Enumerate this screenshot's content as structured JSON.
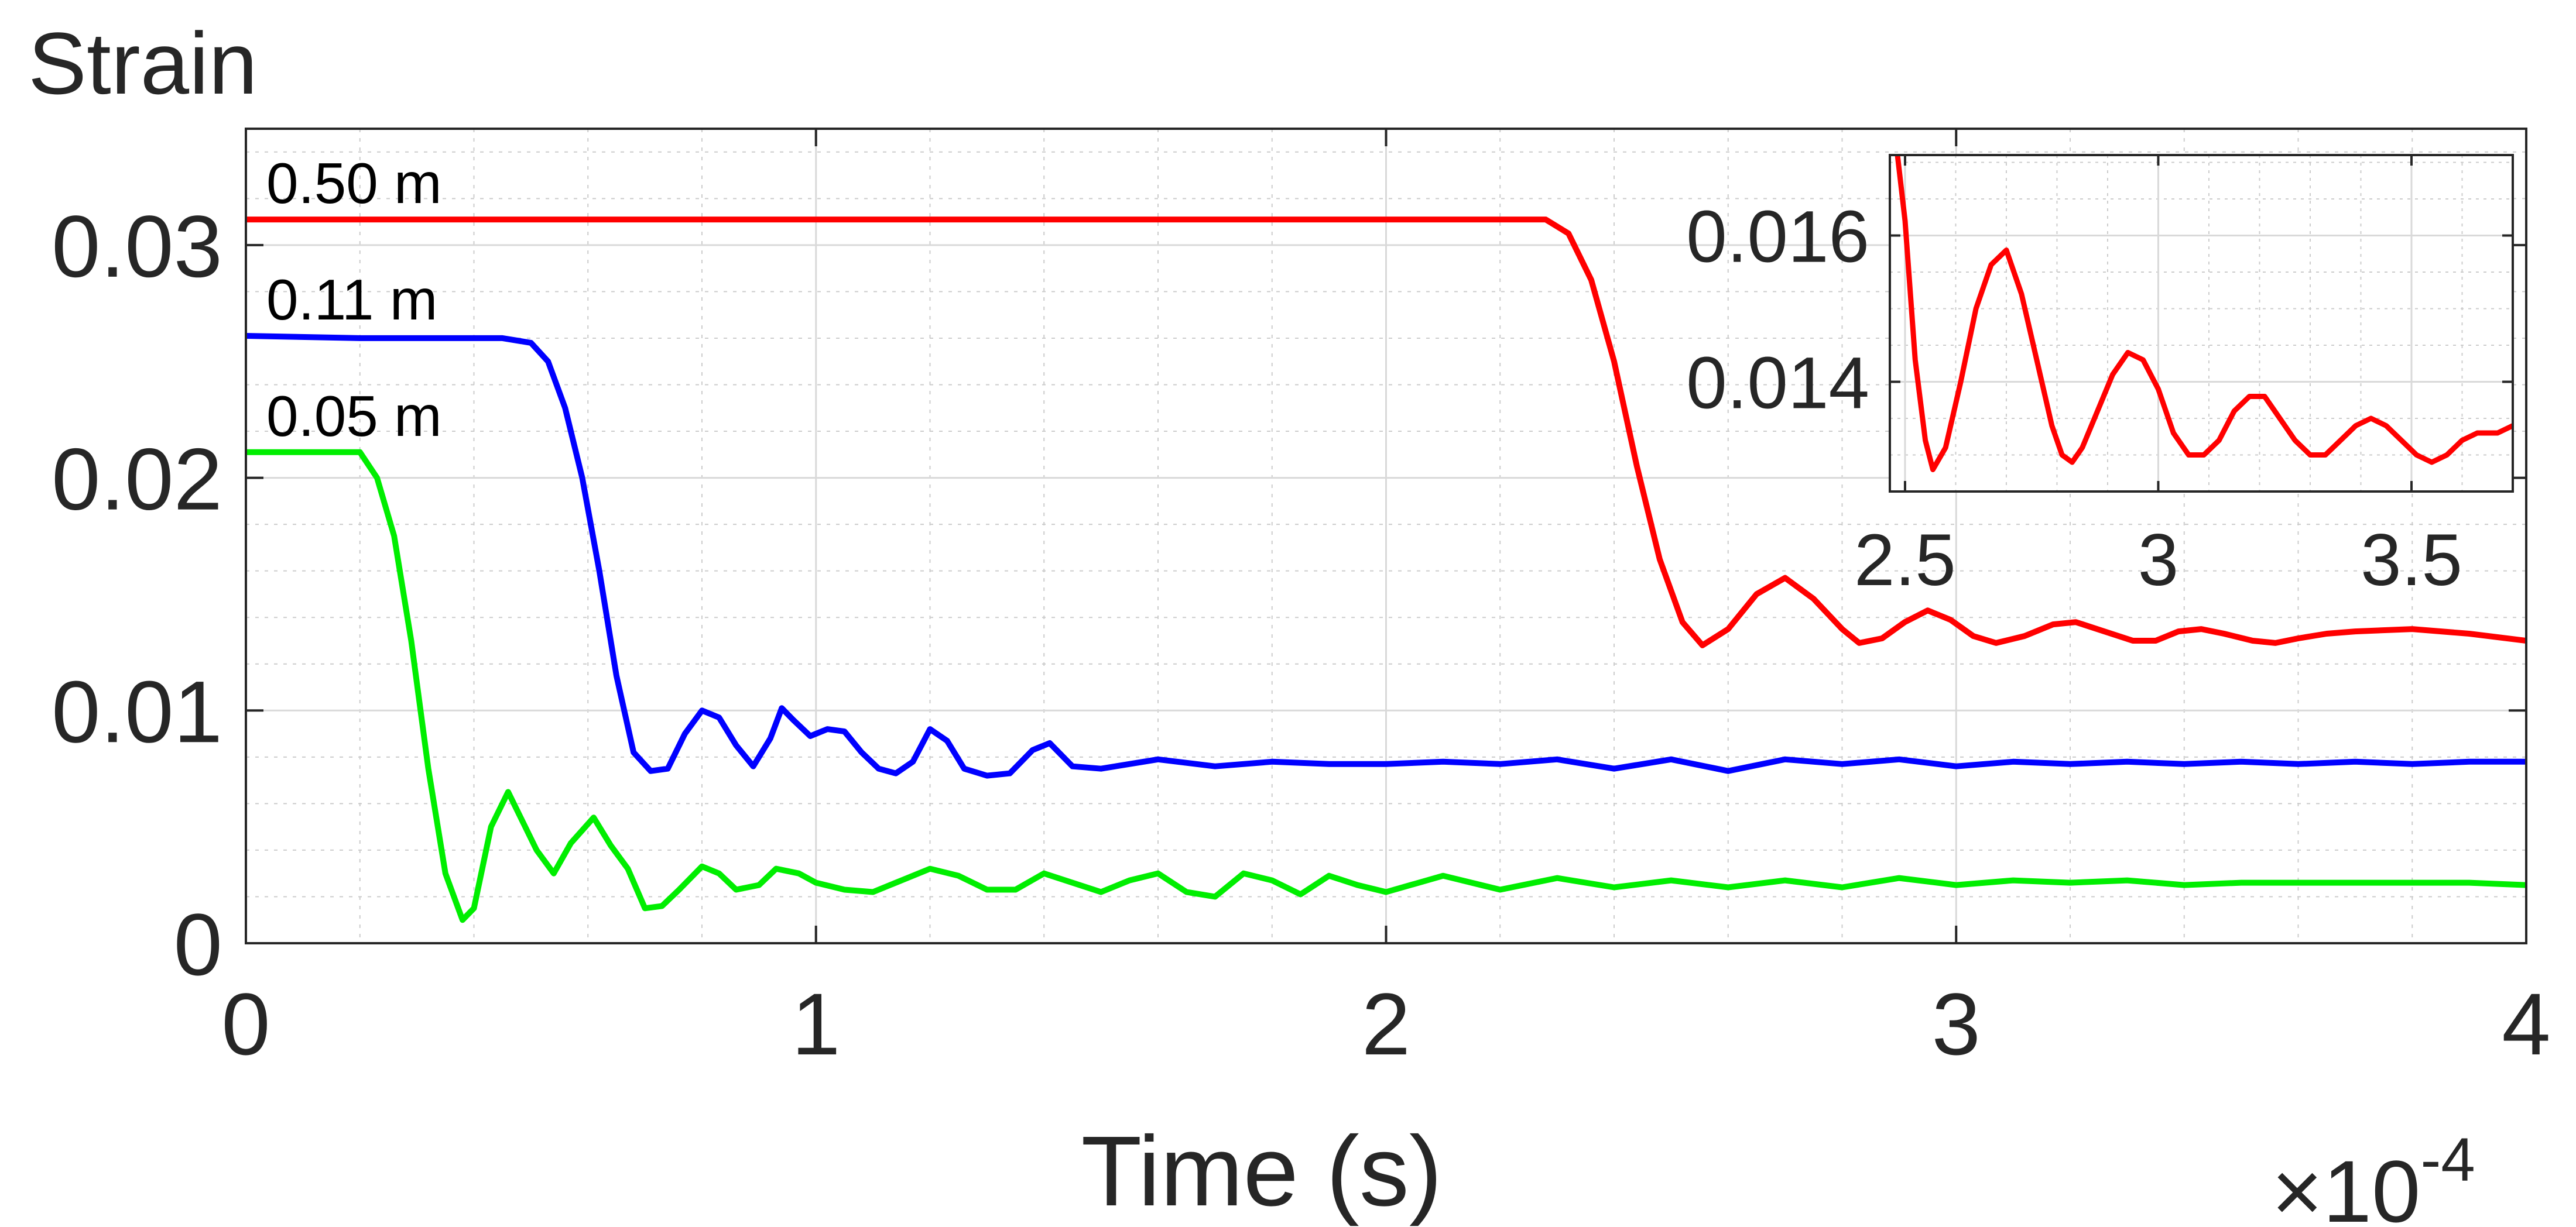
{
  "chart_data": [
    {
      "type": "line",
      "ylabel": "Strain",
      "xlabel": "Time (s)",
      "x_multiplier": {
        "base": "×10",
        "exponent": "-4"
      },
      "xlim": [
        0,
        4
      ],
      "ylim": [
        0,
        0.035
      ],
      "xticks": [
        "0",
        "1",
        "2",
        "3",
        "4"
      ],
      "xtick_values": [
        0,
        1,
        2,
        3,
        4
      ],
      "yticks": [
        "0",
        "0.01",
        "0.02",
        "0.03"
      ],
      "ytick_values": [
        0,
        0.01,
        0.02,
        0.03
      ],
      "grid": true,
      "minor_grid": true,
      "series": [
        {
          "name": "0.50 m",
          "color": "#ff0000",
          "points": [
            [
              0,
              0.0311
            ],
            [
              0.5,
              0.0311
            ],
            [
              1.0,
              0.0311
            ],
            [
              1.5,
              0.0311
            ],
            [
              2.0,
              0.0311
            ],
            [
              2.2,
              0.0311
            ],
            [
              2.28,
              0.0311
            ],
            [
              2.32,
              0.0305
            ],
            [
              2.36,
              0.0285
            ],
            [
              2.4,
              0.025
            ],
            [
              2.44,
              0.0205
            ],
            [
              2.48,
              0.0165
            ],
            [
              2.52,
              0.0138
            ],
            [
              2.555,
              0.0128
            ],
            [
              2.6,
              0.0135
            ],
            [
              2.65,
              0.015
            ],
            [
              2.7,
              0.0157
            ],
            [
              2.75,
              0.0148
            ],
            [
              2.8,
              0.0135
            ],
            [
              2.83,
              0.0129
            ],
            [
              2.87,
              0.0131
            ],
            [
              2.91,
              0.0138
            ],
            [
              2.95,
              0.0143
            ],
            [
              2.99,
              0.0139
            ],
            [
              3.03,
              0.0132
            ],
            [
              3.07,
              0.0129
            ],
            [
              3.12,
              0.0132
            ],
            [
              3.17,
              0.0137
            ],
            [
              3.21,
              0.0138
            ],
            [
              3.26,
              0.0134
            ],
            [
              3.31,
              0.013
            ],
            [
              3.35,
              0.013
            ],
            [
              3.39,
              0.0134
            ],
            [
              3.43,
              0.0135
            ],
            [
              3.47,
              0.0133
            ],
            [
              3.52,
              0.013
            ],
            [
              3.56,
              0.0129
            ],
            [
              3.6,
              0.0131
            ],
            [
              3.65,
              0.0133
            ],
            [
              3.7,
              0.0134
            ],
            [
              3.8,
              0.0135
            ],
            [
              3.9,
              0.0133
            ],
            [
              4.0,
              0.013
            ]
          ]
        },
        {
          "name": "0.11 m",
          "color": "#0000ff",
          "points": [
            [
              0,
              0.0261
            ],
            [
              0.2,
              0.026
            ],
            [
              0.45,
              0.026
            ],
            [
              0.5,
              0.0258
            ],
            [
              0.53,
              0.025
            ],
            [
              0.56,
              0.023
            ],
            [
              0.59,
              0.02
            ],
            [
              0.62,
              0.016
            ],
            [
              0.65,
              0.0115
            ],
            [
              0.68,
              0.0082
            ],
            [
              0.71,
              0.0074
            ],
            [
              0.74,
              0.0075
            ],
            [
              0.77,
              0.009
            ],
            [
              0.8,
              0.01
            ],
            [
              0.83,
              0.0097
            ],
            [
              0.86,
              0.0085
            ],
            [
              0.89,
              0.0076
            ],
            [
              0.92,
              0.0088
            ],
            [
              0.94,
              0.0101
            ],
            [
              0.96,
              0.0096
            ],
            [
              0.99,
              0.0089
            ],
            [
              1.02,
              0.0092
            ],
            [
              1.05,
              0.0091
            ],
            [
              1.08,
              0.0082
            ],
            [
              1.11,
              0.0075
            ],
            [
              1.14,
              0.0073
            ],
            [
              1.17,
              0.0078
            ],
            [
              1.2,
              0.0092
            ],
            [
              1.23,
              0.0087
            ],
            [
              1.26,
              0.0075
            ],
            [
              1.3,
              0.0072
            ],
            [
              1.34,
              0.0073
            ],
            [
              1.38,
              0.0083
            ],
            [
              1.41,
              0.0086
            ],
            [
              1.45,
              0.0076
            ],
            [
              1.5,
              0.0075
            ],
            [
              1.6,
              0.0079
            ],
            [
              1.7,
              0.0076
            ],
            [
              1.8,
              0.0078
            ],
            [
              1.9,
              0.0077
            ],
            [
              2.0,
              0.0077
            ],
            [
              2.1,
              0.0078
            ],
            [
              2.2,
              0.0077
            ],
            [
              2.3,
              0.0079
            ],
            [
              2.4,
              0.0075
            ],
            [
              2.5,
              0.0079
            ],
            [
              2.6,
              0.0074
            ],
            [
              2.7,
              0.0079
            ],
            [
              2.8,
              0.0077
            ],
            [
              2.9,
              0.0079
            ],
            [
              3.0,
              0.0076
            ],
            [
              3.1,
              0.0078
            ],
            [
              3.2,
              0.0077
            ],
            [
              3.3,
              0.0078
            ],
            [
              3.4,
              0.0077
            ],
            [
              3.5,
              0.0078
            ],
            [
              3.6,
              0.0077
            ],
            [
              3.7,
              0.0078
            ],
            [
              3.8,
              0.0077
            ],
            [
              3.9,
              0.0078
            ],
            [
              4.0,
              0.0078
            ]
          ]
        },
        {
          "name": "0.05 m",
          "color": "#00ee00",
          "points": [
            [
              0,
              0.0211
            ],
            [
              0.1,
              0.0211
            ],
            [
              0.2,
              0.0211
            ],
            [
              0.23,
              0.02
            ],
            [
              0.26,
              0.0175
            ],
            [
              0.29,
              0.013
            ],
            [
              0.32,
              0.0075
            ],
            [
              0.35,
              0.003
            ],
            [
              0.38,
              0.001
            ],
            [
              0.4,
              0.0015
            ],
            [
              0.43,
              0.005
            ],
            [
              0.46,
              0.0065
            ],
            [
              0.48,
              0.0055
            ],
            [
              0.51,
              0.004
            ],
            [
              0.54,
              0.003
            ],
            [
              0.57,
              0.0043
            ],
            [
              0.61,
              0.0054
            ],
            [
              0.64,
              0.0042
            ],
            [
              0.67,
              0.0032
            ],
            [
              0.7,
              0.0015
            ],
            [
              0.73,
              0.0016
            ],
            [
              0.76,
              0.0023
            ],
            [
              0.8,
              0.0033
            ],
            [
              0.83,
              0.003
            ],
            [
              0.86,
              0.0023
            ],
            [
              0.9,
              0.0025
            ],
            [
              0.93,
              0.0032
            ],
            [
              0.97,
              0.003
            ],
            [
              1.0,
              0.0026
            ],
            [
              1.05,
              0.0023
            ],
            [
              1.1,
              0.0022
            ],
            [
              1.15,
              0.0027
            ],
            [
              1.2,
              0.0032
            ],
            [
              1.25,
              0.0029
            ],
            [
              1.3,
              0.0023
            ],
            [
              1.35,
              0.0023
            ],
            [
              1.4,
              0.003
            ],
            [
              1.45,
              0.0026
            ],
            [
              1.5,
              0.0022
            ],
            [
              1.55,
              0.0027
            ],
            [
              1.6,
              0.003
            ],
            [
              1.65,
              0.0022
            ],
            [
              1.7,
              0.002
            ],
            [
              1.75,
              0.003
            ],
            [
              1.8,
              0.0027
            ],
            [
              1.85,
              0.0021
            ],
            [
              1.9,
              0.0029
            ],
            [
              1.95,
              0.0025
            ],
            [
              2.0,
              0.0022
            ],
            [
              2.1,
              0.0029
            ],
            [
              2.2,
              0.0023
            ],
            [
              2.3,
              0.0028
            ],
            [
              2.4,
              0.0024
            ],
            [
              2.5,
              0.0027
            ],
            [
              2.6,
              0.0024
            ],
            [
              2.7,
              0.0027
            ],
            [
              2.8,
              0.0024
            ],
            [
              2.9,
              0.0028
            ],
            [
              3.0,
              0.0025
            ],
            [
              3.1,
              0.0027
            ],
            [
              3.2,
              0.0026
            ],
            [
              3.3,
              0.0027
            ],
            [
              3.4,
              0.0025
            ],
            [
              3.5,
              0.0026
            ],
            [
              3.6,
              0.0026
            ],
            [
              3.7,
              0.0026
            ],
            [
              3.8,
              0.0026
            ],
            [
              3.9,
              0.0026
            ],
            [
              4.0,
              0.0025
            ]
          ]
        }
      ]
    },
    {
      "type": "line",
      "role": "inset",
      "xlim": [
        2.47,
        3.7
      ],
      "ylim": [
        0.0125,
        0.0171
      ],
      "xticks": [
        "2.5",
        "3",
        "3.5"
      ],
      "xtick_values": [
        2.5,
        3.0,
        3.5
      ],
      "yticks": [
        "0.014",
        "0.016"
      ],
      "ytick_values": [
        0.014,
        0.016
      ],
      "grid": true,
      "minor_grid": true,
      "series": [
        {
          "color": "#ff0000",
          "points": [
            [
              2.47,
              0.018
            ],
            [
              2.5,
              0.0162
            ],
            [
              2.52,
              0.0143
            ],
            [
              2.54,
              0.0132
            ],
            [
              2.555,
              0.0128
            ],
            [
              2.58,
              0.0131
            ],
            [
              2.61,
              0.014
            ],
            [
              2.64,
              0.015
            ],
            [
              2.67,
              0.0156
            ],
            [
              2.7,
              0.0158
            ],
            [
              2.73,
              0.0152
            ],
            [
              2.76,
              0.0143
            ],
            [
              2.79,
              0.0134
            ],
            [
              2.81,
              0.013
            ],
            [
              2.83,
              0.0129
            ],
            [
              2.85,
              0.0131
            ],
            [
              2.88,
              0.0136
            ],
            [
              2.91,
              0.0141
            ],
            [
              2.94,
              0.0144
            ],
            [
              2.97,
              0.0143
            ],
            [
              3.0,
              0.0139
            ],
            [
              3.03,
              0.0133
            ],
            [
              3.06,
              0.013
            ],
            [
              3.09,
              0.013
            ],
            [
              3.12,
              0.0132
            ],
            [
              3.15,
              0.0136
            ],
            [
              3.18,
              0.0138
            ],
            [
              3.21,
              0.0138
            ],
            [
              3.24,
              0.0135
            ],
            [
              3.27,
              0.0132
            ],
            [
              3.3,
              0.013
            ],
            [
              3.33,
              0.013
            ],
            [
              3.36,
              0.0132
            ],
            [
              3.39,
              0.0134
            ],
            [
              3.42,
              0.0135
            ],
            [
              3.45,
              0.0134
            ],
            [
              3.48,
              0.0132
            ],
            [
              3.51,
              0.013
            ],
            [
              3.54,
              0.0129
            ],
            [
              3.57,
              0.013
            ],
            [
              3.6,
              0.0132
            ],
            [
              3.63,
              0.0133
            ],
            [
              3.67,
              0.0133
            ],
            [
              3.7,
              0.0134
            ]
          ]
        }
      ]
    }
  ]
}
